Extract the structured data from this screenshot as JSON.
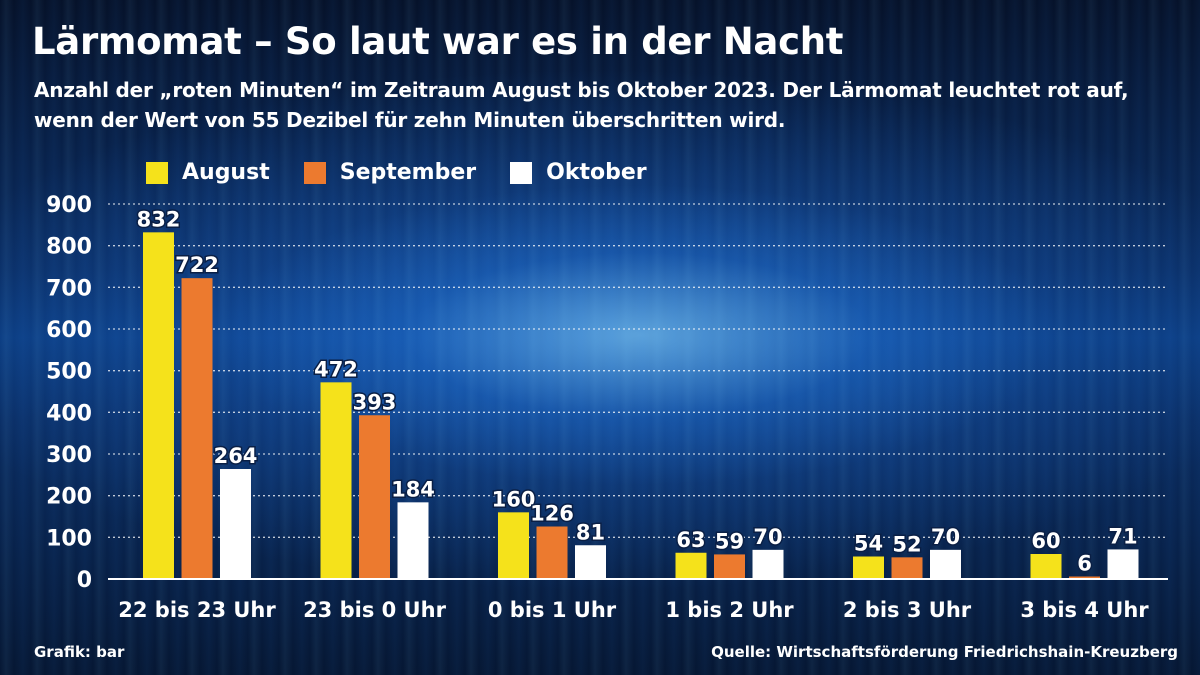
{
  "title": "Lärmomat – So laut war es in der Nacht",
  "subtitle": "Anzahl der „roten Minuten“ im Zeitraum August bis Oktober 2023. Der Lärmomat leuchtet rot auf, wenn der Wert von 55 Dezibel für zehn Minuten überschritten wird.",
  "footer": {
    "left": "Grafik: bar",
    "right": "Quelle: Wirtschaftsförderung Friedrichshain-Kreuzberg"
  },
  "colors": {
    "august": "#f5e21b",
    "september": "#ec7a2f",
    "oktober": "#ffffff"
  },
  "chart_data": {
    "type": "bar",
    "title": "Lärmomat – So laut war es in der Nacht",
    "xlabel": "",
    "ylabel": "",
    "ylim": [
      0,
      900
    ],
    "yticks": [
      0,
      100,
      200,
      300,
      400,
      500,
      600,
      700,
      800,
      900
    ],
    "grid": true,
    "legend_position": "top-left",
    "categories": [
      "22 bis 23 Uhr",
      "23 bis 0 Uhr",
      "0 bis 1 Uhr",
      "1 bis 2 Uhr",
      "2 bis 3 Uhr",
      "3 bis 4 Uhr"
    ],
    "series": [
      {
        "name": "August",
        "color": "#f5e21b",
        "values": [
          832,
          472,
          160,
          63,
          54,
          60
        ]
      },
      {
        "name": "September",
        "color": "#ec7a2f",
        "values": [
          722,
          393,
          126,
          59,
          52,
          6
        ]
      },
      {
        "name": "Oktober",
        "color": "#ffffff",
        "values": [
          264,
          184,
          81,
          70,
          70,
          71
        ]
      }
    ]
  }
}
